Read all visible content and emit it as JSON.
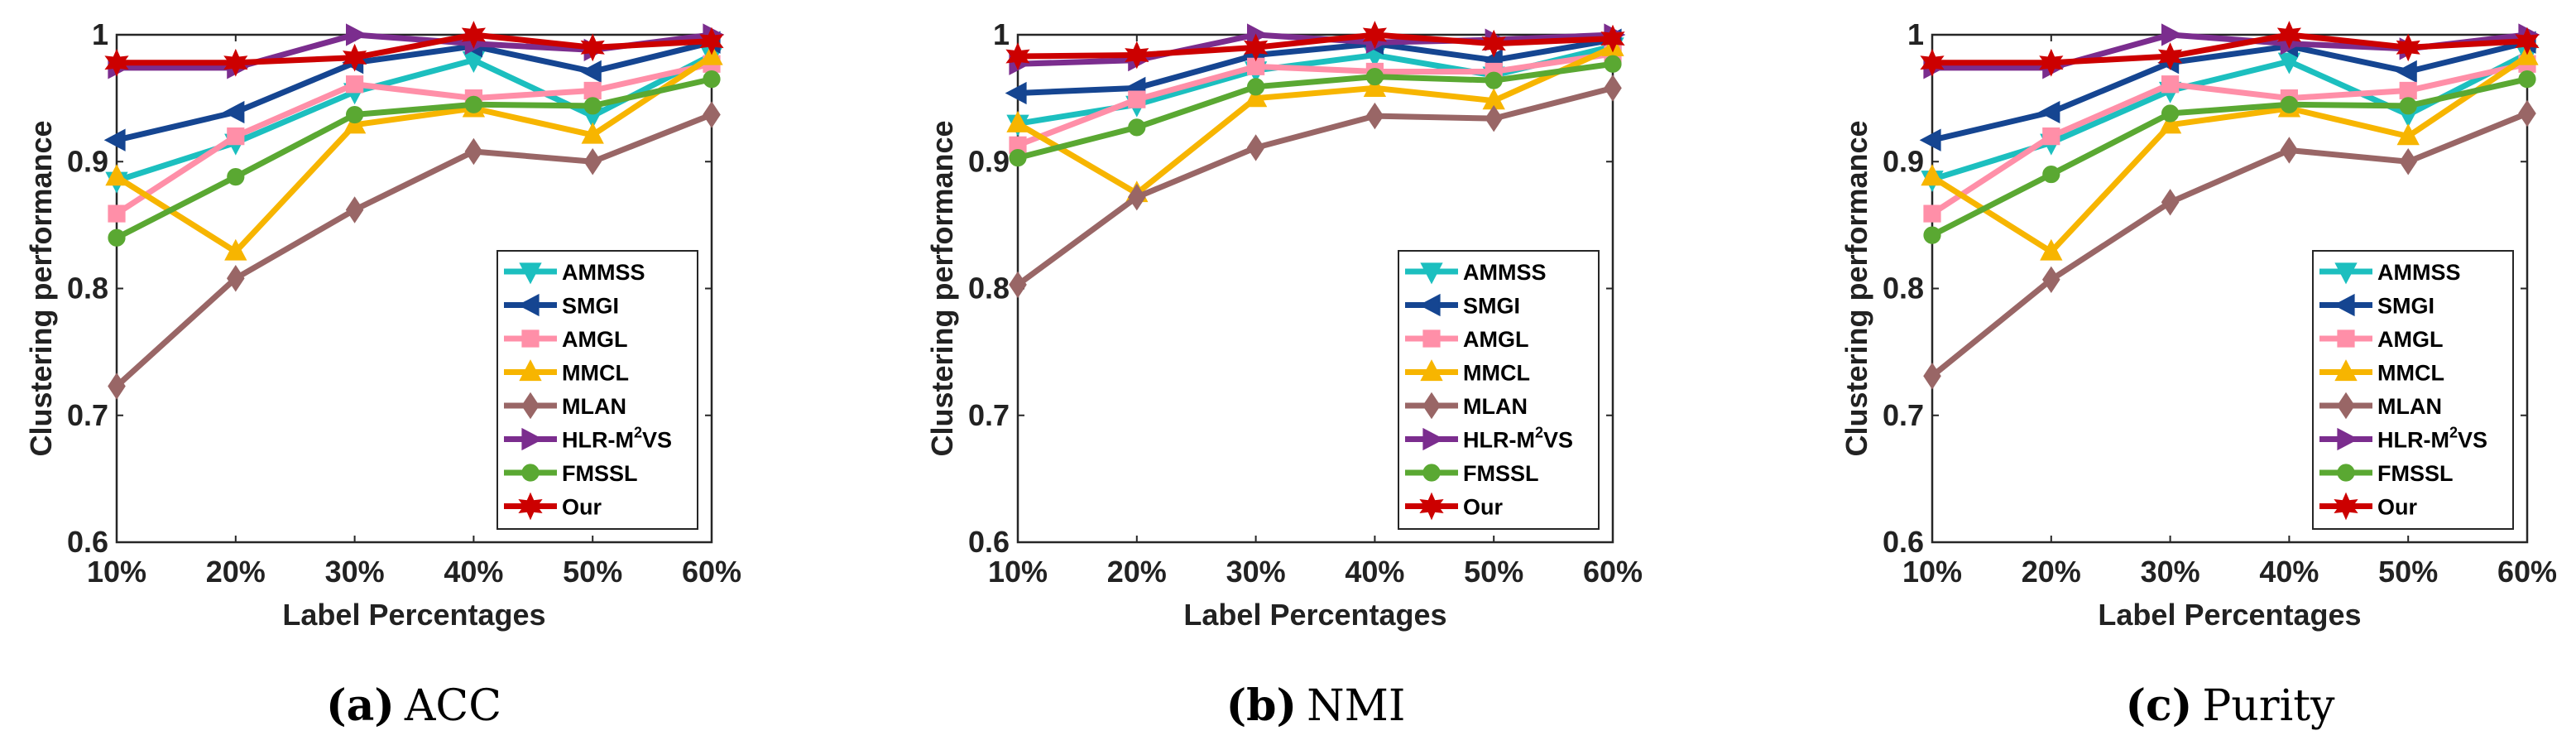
{
  "colors": {
    "AMMSS": "#1cbfbf",
    "SMGI": "#154591",
    "AMGL": "#ff8fa8",
    "MMCL": "#f7b500",
    "MLAN": "#996666",
    "HLR-M2VS": "#7b2d8e",
    "FMSSL": "#5aa832",
    "Our": "#cc0000"
  },
  "legend_labels": [
    "AMMSS",
    "SMGI",
    "AMGL",
    "MMCL",
    "MLAN",
    "HLR-M",
    "FMSSL",
    "Our"
  ],
  "legend_superscript": "2",
  "legend_suffix": "VS",
  "chart_data": [
    {
      "type": "line",
      "caption_letter": "(a)",
      "caption_text": "ACC",
      "xlabel": "Label Percentages",
      "ylabel": "Clustering performance",
      "categories": [
        "10%",
        "20%",
        "30%",
        "40%",
        "50%",
        "60%"
      ],
      "yticks": [
        "0.6",
        "0.7",
        "0.8",
        "0.9",
        "1"
      ],
      "ylim": [
        0.6,
        1.0
      ],
      "grid": false,
      "legend": "bottom-right",
      "series": [
        {
          "name": "AMMSS",
          "marker": "triangle-down",
          "values": [
            0.885,
            0.915,
            0.955,
            0.98,
            0.936,
            0.984
          ]
        },
        {
          "name": "SMGI",
          "marker": "triangle-left",
          "values": [
            0.917,
            0.939,
            0.978,
            0.991,
            0.971,
            0.994
          ]
        },
        {
          "name": "AMGL",
          "marker": "square",
          "values": [
            0.859,
            0.92,
            0.961,
            0.95,
            0.956,
            0.977
          ]
        },
        {
          "name": "MMCL",
          "marker": "triangle-up",
          "values": [
            0.888,
            0.829,
            0.929,
            0.942,
            0.921,
            0.983
          ]
        },
        {
          "name": "MLAN",
          "marker": "diamond",
          "values": [
            0.723,
            0.808,
            0.862,
            0.908,
            0.9,
            0.937
          ]
        },
        {
          "name": "HLR-M2VS",
          "marker": "triangle-right",
          "values": [
            0.974,
            0.974,
            1.0,
            0.993,
            0.988,
            1.0
          ]
        },
        {
          "name": "FMSSL",
          "marker": "circle",
          "values": [
            0.84,
            0.888,
            0.937,
            0.945,
            0.944,
            0.965
          ]
        },
        {
          "name": "Our",
          "marker": "hexagram",
          "values": [
            0.978,
            0.978,
            0.982,
            1.0,
            0.99,
            0.995
          ]
        }
      ]
    },
    {
      "type": "line",
      "caption_letter": "(b)",
      "caption_text": "NMI",
      "xlabel": "Label Percentages",
      "ylabel": "Clustering performance",
      "categories": [
        "10%",
        "20%",
        "30%",
        "40%",
        "50%",
        "60%"
      ],
      "yticks": [
        "0.6",
        "0.7",
        "0.8",
        "0.9",
        "1"
      ],
      "ylim": [
        0.6,
        1.0
      ],
      "grid": false,
      "legend": "bottom-right",
      "series": [
        {
          "name": "AMMSS",
          "marker": "triangle-down",
          "values": [
            0.93,
            0.945,
            0.972,
            0.984,
            0.968,
            0.991
          ]
        },
        {
          "name": "SMGI",
          "marker": "triangle-left",
          "values": [
            0.954,
            0.958,
            0.984,
            0.993,
            0.98,
            0.996
          ]
        },
        {
          "name": "AMGL",
          "marker": "square",
          "values": [
            0.913,
            0.949,
            0.975,
            0.971,
            0.971,
            0.985
          ]
        },
        {
          "name": "MMCL",
          "marker": "triangle-up",
          "values": [
            0.93,
            0.875,
            0.95,
            0.958,
            0.948,
            0.99
          ]
        },
        {
          "name": "MLAN",
          "marker": "diamond",
          "values": [
            0.803,
            0.872,
            0.911,
            0.936,
            0.934,
            0.958
          ]
        },
        {
          "name": "HLR-M2VS",
          "marker": "triangle-right",
          "values": [
            0.977,
            0.98,
            1.0,
            0.994,
            0.996,
            1.0
          ]
        },
        {
          "name": "FMSSL",
          "marker": "circle",
          "values": [
            0.903,
            0.927,
            0.959,
            0.967,
            0.964,
            0.977
          ]
        },
        {
          "name": "Our",
          "marker": "hexagram",
          "values": [
            0.983,
            0.984,
            0.99,
            1.0,
            0.993,
            0.997
          ]
        }
      ]
    },
    {
      "type": "line",
      "caption_letter": "(c)",
      "caption_text": "Purity",
      "xlabel": "Label Percentages",
      "ylabel": "Clustering performance",
      "categories": [
        "10%",
        "20%",
        "30%",
        "40%",
        "50%",
        "60%"
      ],
      "yticks": [
        "0.6",
        "0.7",
        "0.8",
        "0.9",
        "1"
      ],
      "ylim": [
        0.6,
        1.0
      ],
      "grid": false,
      "legend": "bottom-right",
      "series": [
        {
          "name": "AMMSS",
          "marker": "triangle-down",
          "values": [
            0.886,
            0.915,
            0.956,
            0.979,
            0.937,
            0.985
          ]
        },
        {
          "name": "SMGI",
          "marker": "triangle-left",
          "values": [
            0.917,
            0.939,
            0.978,
            0.991,
            0.971,
            0.994
          ]
        },
        {
          "name": "AMGL",
          "marker": "square",
          "values": [
            0.859,
            0.92,
            0.961,
            0.95,
            0.956,
            0.977
          ]
        },
        {
          "name": "MMCL",
          "marker": "triangle-up",
          "values": [
            0.888,
            0.829,
            0.929,
            0.942,
            0.92,
            0.983
          ]
        },
        {
          "name": "MLAN",
          "marker": "diamond",
          "values": [
            0.731,
            0.807,
            0.868,
            0.909,
            0.9,
            0.938
          ]
        },
        {
          "name": "HLR-M2VS",
          "marker": "triangle-right",
          "values": [
            0.974,
            0.974,
            1.0,
            0.993,
            0.989,
            1.0
          ]
        },
        {
          "name": "FMSSL",
          "marker": "circle",
          "values": [
            0.842,
            0.89,
            0.938,
            0.945,
            0.944,
            0.965
          ]
        },
        {
          "name": "Our",
          "marker": "hexagram",
          "values": [
            0.978,
            0.978,
            0.983,
            1.0,
            0.99,
            0.995
          ]
        }
      ]
    }
  ]
}
